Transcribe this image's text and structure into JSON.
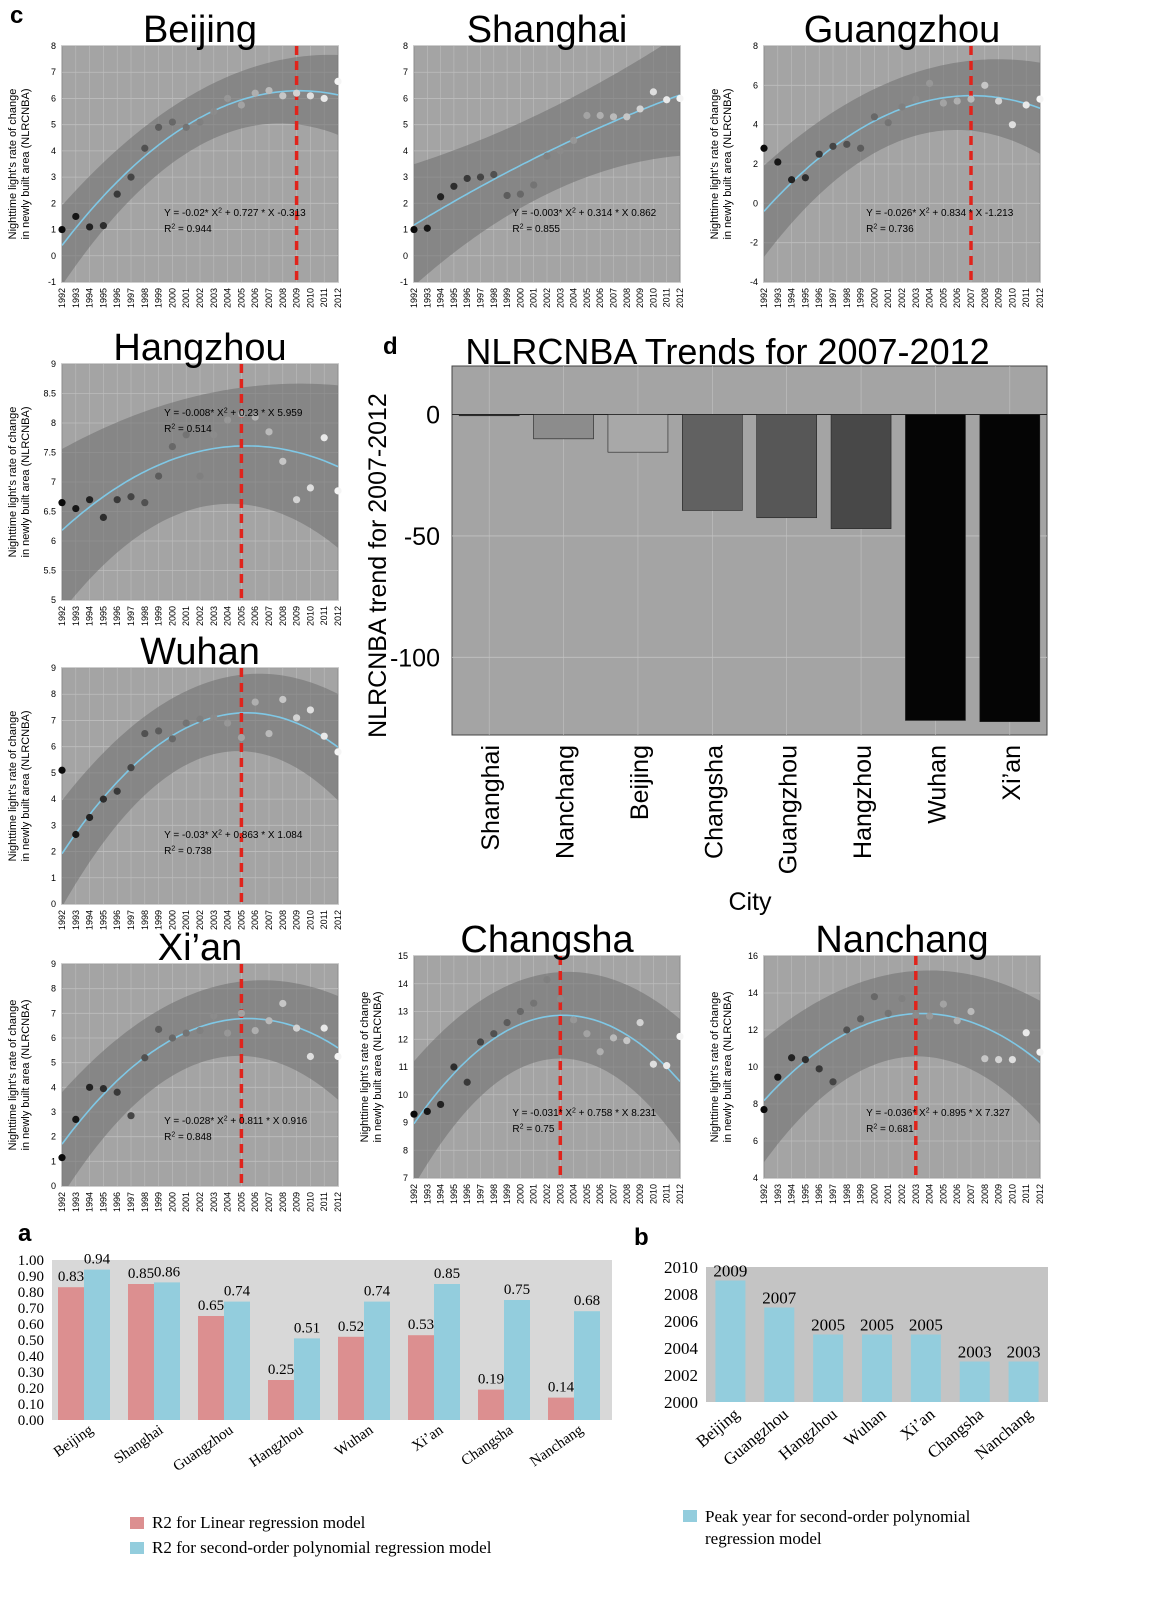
{
  "panel_labels": {
    "a": "a",
    "b": "b",
    "c": "c",
    "d": "d"
  },
  "chart_data": [
    {
      "id": "c-beijing",
      "type": "scatter",
      "title": "Beijing",
      "ylabel_line1": "Nighttime light's rate of change",
      "ylabel_line2": "in newly built area (NLRCNBA)",
      "ylim": [
        -1,
        8
      ],
      "yticks": [
        -1,
        0,
        1,
        2,
        3,
        4,
        5,
        6,
        7,
        8
      ],
      "xlim": [
        1992,
        2012
      ],
      "x": [
        1992,
        1993,
        1994,
        1995,
        1996,
        1997,
        1998,
        1999,
        2000,
        2001,
        2002,
        2003,
        2004,
        2005,
        2006,
        2007,
        2008,
        2009,
        2010,
        2011,
        2012
      ],
      "y": [
        1.0,
        1.5,
        1.1,
        1.15,
        2.35,
        3.0,
        4.1,
        4.9,
        5.1,
        4.9,
        5.1,
        5.5,
        6.0,
        5.75,
        6.2,
        6.3,
        6.1,
        6.2,
        6.1,
        6.0,
        6.65
      ],
      "fit": {
        "a": -0.02,
        "b": 0.727,
        "c": -0.313,
        "ci": 1.05
      },
      "equation_text": "Y = -0.02* X² + 0.727 * X -0.313",
      "r2_text": "R² = 0.944",
      "peak_year": 2009
    },
    {
      "id": "c-shanghai",
      "type": "scatter",
      "title": "Shanghai",
      "ylim": [
        -1,
        8
      ],
      "yticks": [
        -1,
        0,
        1,
        2,
        3,
        4,
        5,
        6,
        7,
        8
      ],
      "xlim": [
        1992,
        2012
      ],
      "x": [
        1992,
        1993,
        1994,
        1995,
        1996,
        1997,
        1998,
        1999,
        2000,
        2001,
        2002,
        2003,
        2004,
        2005,
        2006,
        2007,
        2008,
        2009,
        2010,
        2011,
        2012
      ],
      "y": [
        1.0,
        1.05,
        2.25,
        2.65,
        2.95,
        3.0,
        3.1,
        2.3,
        2.35,
        2.7,
        3.8,
        4.0,
        4.4,
        5.35,
        5.35,
        5.3,
        5.3,
        5.6,
        6.25,
        5.95,
        6.0
      ],
      "fit": {
        "a": -0.003,
        "b": 0.314,
        "c": 0.862,
        "ci": 1.6
      },
      "equation_text": "Y = -0.003* X² + 0.314 * X 0.862",
      "r2_text": "R² = 0.855",
      "peak_year": null
    },
    {
      "id": "c-guangzhou",
      "type": "scatter",
      "title": "Guangzhou",
      "ylabel_line1": "Nighttime light's rate of change",
      "ylabel_line2": "in newly built area (NLRCNBA)",
      "ylim": [
        -4,
        8
      ],
      "yticks": [
        -4,
        -2,
        0,
        2,
        4,
        6,
        8
      ],
      "xlim": [
        1992,
        2012
      ],
      "x": [
        1992,
        1993,
        1994,
        1995,
        1996,
        1997,
        1998,
        1999,
        2000,
        2001,
        2002,
        2003,
        2004,
        2005,
        2006,
        2007,
        2008,
        2009,
        2010,
        2011,
        2012
      ],
      "y": [
        2.8,
        2.1,
        1.2,
        1.3,
        2.5,
        2.9,
        3.0,
        2.8,
        4.4,
        4.1,
        4.9,
        5.3,
        6.1,
        5.1,
        5.2,
        5.3,
        6.0,
        5.2,
        4.0,
        5.0,
        5.3
      ],
      "fit": {
        "a": -0.026,
        "b": 0.834,
        "c": -1.213,
        "ci": 1.6
      },
      "equation_text": "Y = -0.026* X² + 0.834 * X -1.213",
      "r2_text": "R² = 0.736",
      "peak_year": 2007
    },
    {
      "id": "c-hangzhou",
      "type": "scatter",
      "title": "Hangzhou",
      "ylabel_line1": "Nighttime light's rate of change",
      "ylabel_line2": "in newly built area (NLRCNBA)",
      "ylim": [
        5,
        9
      ],
      "yticks": [
        5,
        5.5,
        6,
        6.5,
        7,
        7.5,
        8,
        8.5,
        9
      ],
      "xlim": [
        1992,
        2012
      ],
      "x": [
        1992,
        1993,
        1994,
        1995,
        1996,
        1997,
        1998,
        1999,
        2000,
        2001,
        2002,
        2003,
        2004,
        2005,
        2006,
        2007,
        2008,
        2009,
        2010,
        2011,
        2012
      ],
      "y": [
        6.65,
        6.55,
        6.7,
        6.4,
        6.7,
        6.75,
        6.65,
        7.1,
        7.6,
        7.8,
        7.1,
        7.8,
        8.05,
        8.15,
        8.1,
        7.85,
        7.35,
        6.7,
        6.9,
        7.75,
        6.85
      ],
      "fit": {
        "a": -0.008,
        "b": 0.23,
        "c": 5.959,
        "ci": 0.95
      },
      "equation_text": "Y = -0.008* X² + 0.23 * X 5.959",
      "r2_text": "R² = 0.514",
      "peak_year": 2005
    },
    {
      "id": "c-wuhan",
      "type": "scatter",
      "title": "Wuhan",
      "ylabel_line1": "Nighttime light's rate of change",
      "ylabel_line2": "in newly built area (NLRCNBA)",
      "ylim": [
        0,
        9
      ],
      "yticks": [
        0,
        1,
        2,
        3,
        4,
        5,
        6,
        7,
        8,
        9
      ],
      "xlim": [
        1992,
        2012
      ],
      "x": [
        1992,
        1993,
        1994,
        1995,
        1996,
        1997,
        1998,
        1999,
        2000,
        2001,
        2002,
        2003,
        2004,
        2005,
        2006,
        2007,
        2008,
        2009,
        2010,
        2011,
        2012
      ],
      "y": [
        5.1,
        2.65,
        3.3,
        4.0,
        4.3,
        5.2,
        6.5,
        6.6,
        6.3,
        6.9,
        7.05,
        7.1,
        6.9,
        6.35,
        7.7,
        6.5,
        7.8,
        7.1,
        7.4,
        6.4,
        5.8
      ],
      "fit": {
        "a": -0.03,
        "b": 0.863,
        "c": 1.084,
        "ci": 1.4
      },
      "equation_text": "Y = -0.03* X² + 0.863 * X 1.084",
      "r2_text": "R² = 0.738",
      "peak_year": 2005
    },
    {
      "id": "c-xian",
      "type": "scatter",
      "title": "Xi’an",
      "ylabel_line1": "Nighttime light's rate of change",
      "ylabel_line2": "in newly built area (NLRCNBA)",
      "ylim": [
        0,
        9
      ],
      "yticks": [
        0,
        1,
        2,
        3,
        4,
        5,
        6,
        7,
        8,
        9
      ],
      "xlim": [
        1992,
        2012
      ],
      "x": [
        1992,
        1993,
        1994,
        1995,
        1996,
        1997,
        1998,
        1999,
        2000,
        2001,
        2002,
        2003,
        2004,
        2005,
        2006,
        2007,
        2008,
        2009,
        2010,
        2011,
        2012
      ],
      "y": [
        1.15,
        2.7,
        4.0,
        3.95,
        3.8,
        2.85,
        5.2,
        6.35,
        6.0,
        6.2,
        6.3,
        6.9,
        6.2,
        7.0,
        6.3,
        6.7,
        7.4,
        6.4,
        5.25,
        6.4,
        5.25
      ],
      "fit": {
        "a": -0.028,
        "b": 0.811,
        "c": 0.916,
        "ci": 1.45
      },
      "equation_text": "Y = -0.028* X² + 0.811 * X 0.916",
      "r2_text": "R² = 0.848",
      "peak_year": 2005
    },
    {
      "id": "c-changsha",
      "type": "scatter",
      "title": "Changsha",
      "ylabel_line1": "Nighttime light's rate of change",
      "ylabel_line2": "in newly built area (NLRCNBA)",
      "ylim": [
        7,
        15
      ],
      "yticks": [
        7,
        8,
        9,
        10,
        11,
        12,
        13,
        14,
        15
      ],
      "xlim": [
        1992,
        2012
      ],
      "x": [
        1992,
        1993,
        1994,
        1995,
        1996,
        1997,
        1998,
        1999,
        2000,
        2001,
        2002,
        2003,
        2004,
        2005,
        2006,
        2007,
        2008,
        2009,
        2010,
        2011,
        2012
      ],
      "y": [
        9.3,
        9.4,
        9.65,
        11.0,
        10.45,
        11.9,
        12.2,
        12.6,
        13.0,
        13.3,
        14.15,
        13.45,
        12.7,
        12.2,
        11.55,
        12.05,
        11.95,
        12.6,
        11.1,
        11.05,
        12.1
      ],
      "fit": {
        "a": -0.031,
        "b": 0.758,
        "c": 8.231,
        "ci": 1.55
      },
      "equation_text": "Y = -0.031* X² + 0.758 * X 8.231",
      "r2_text": "R² = 0.75",
      "peak_year": 2003
    },
    {
      "id": "c-nanchang",
      "type": "scatter",
      "title": "Nanchang",
      "ylabel_line1": "Nighttime light's rate of change",
      "ylabel_line2": "in newly built area (NLRCNBA)",
      "ylim": [
        4,
        16
      ],
      "yticks": [
        4,
        6,
        8,
        10,
        12,
        14,
        16
      ],
      "xlim": [
        1992,
        2012
      ],
      "x": [
        1992,
        1993,
        1994,
        1995,
        1996,
        1997,
        1998,
        1999,
        2000,
        2001,
        2002,
        2003,
        2004,
        2005,
        2006,
        2007,
        2008,
        2009,
        2010,
        2011,
        2012
      ],
      "y": [
        7.7,
        9.45,
        10.5,
        10.4,
        9.9,
        9.2,
        12.0,
        12.6,
        13.8,
        12.9,
        13.7,
        12.8,
        12.75,
        13.4,
        12.5,
        13.0,
        10.45,
        10.4,
        10.4,
        11.85,
        10.8
      ],
      "fit": {
        "a": -0.036,
        "b": 0.895,
        "c": 7.327,
        "ci": 2.3
      },
      "equation_text": "Y = -0.036* X² + 0.895 * X 7.327",
      "r2_text": "R² = 0.681",
      "peak_year": 2003
    },
    {
      "id": "d",
      "type": "bar",
      "title": "NLRCNBA Trends for 2007-2012",
      "xlabel": "City",
      "ylabel": "NLRCNBA trend for 2007-2012",
      "categories": [
        "Shanghai",
        "Nanchang",
        "Beijing",
        "Changsha",
        "Guangzhou",
        "Hangzhou",
        "Wuhan",
        "Xi’an"
      ],
      "values": [
        -0.5,
        -10,
        -15.5,
        -39.5,
        -42.5,
        -47,
        -126,
        -126.5
      ],
      "colors": [
        "#3a3a3a",
        "#8c8c8c",
        "#a8a8a8",
        "#616161",
        "#575757",
        "#484848",
        "#050505",
        "#050505"
      ],
      "ylim": [
        -132,
        20
      ],
      "yticks": [
        0,
        -50,
        -100
      ],
      "ytick_labels": [
        "0",
        "-50",
        "-100"
      ]
    },
    {
      "id": "a",
      "type": "bar",
      "categories": [
        "Beijing",
        "Shanghai",
        "Guangzhou",
        "Hangzhou",
        "Wuhan",
        "Xi’an",
        "Changsha",
        "Nanchang"
      ],
      "series": [
        {
          "name": "R2 for Linear regression model",
          "color": "#dc8f90",
          "values": [
            0.83,
            0.85,
            0.65,
            0.25,
            0.52,
            0.53,
            0.19,
            0.14
          ]
        },
        {
          "name": "R2 for second-order polynomial regression model",
          "color": "#93cddd",
          "values": [
            0.94,
            0.86,
            0.74,
            0.51,
            0.74,
            0.85,
            0.75,
            0.68
          ]
        }
      ],
      "labels": [
        [
          "0.83",
          "0.85",
          "0.65",
          "0.25",
          "0.52",
          "0.53",
          "0.19",
          "0.14"
        ],
        [
          "0.94",
          "0.86",
          "0.74",
          "0.51",
          "0.74",
          "0.85",
          "0.75",
          "0.68"
        ]
      ],
      "ylim": [
        0,
        1.0
      ],
      "ytick_labels": [
        "0.00",
        "0.10",
        "0.20",
        "0.30",
        "0.40",
        "0.50",
        "0.60",
        "0.70",
        "0.80",
        "0.90",
        "1.00"
      ]
    },
    {
      "id": "b",
      "type": "bar",
      "categories": [
        "Beijing",
        "Guangzhou",
        "Hangzhou",
        "Wuhan",
        "Xi’an",
        "Changsha",
        "Nanchang"
      ],
      "series": [
        {
          "name": "Peak year for second-order polynomial regression model",
          "color": "#93cddd",
          "values": [
            2009,
            2007,
            2005,
            2005,
            2005,
            2003,
            2003
          ]
        }
      ],
      "labels": [
        "2009",
        "2007",
        "2005",
        "2005",
        "2005",
        "2003",
        "2003"
      ],
      "ylim": [
        2000,
        2010
      ],
      "ytick_labels": [
        "2000",
        "2002",
        "2004",
        "2006",
        "2008",
        "2010"
      ]
    }
  ],
  "legend": {
    "linear": "R2 for Linear regression model",
    "poly": "R2 for second-order polynomial regression model",
    "peak_line1": "Peak year for second-order polynomial",
    "peak_line2": "regression model"
  }
}
